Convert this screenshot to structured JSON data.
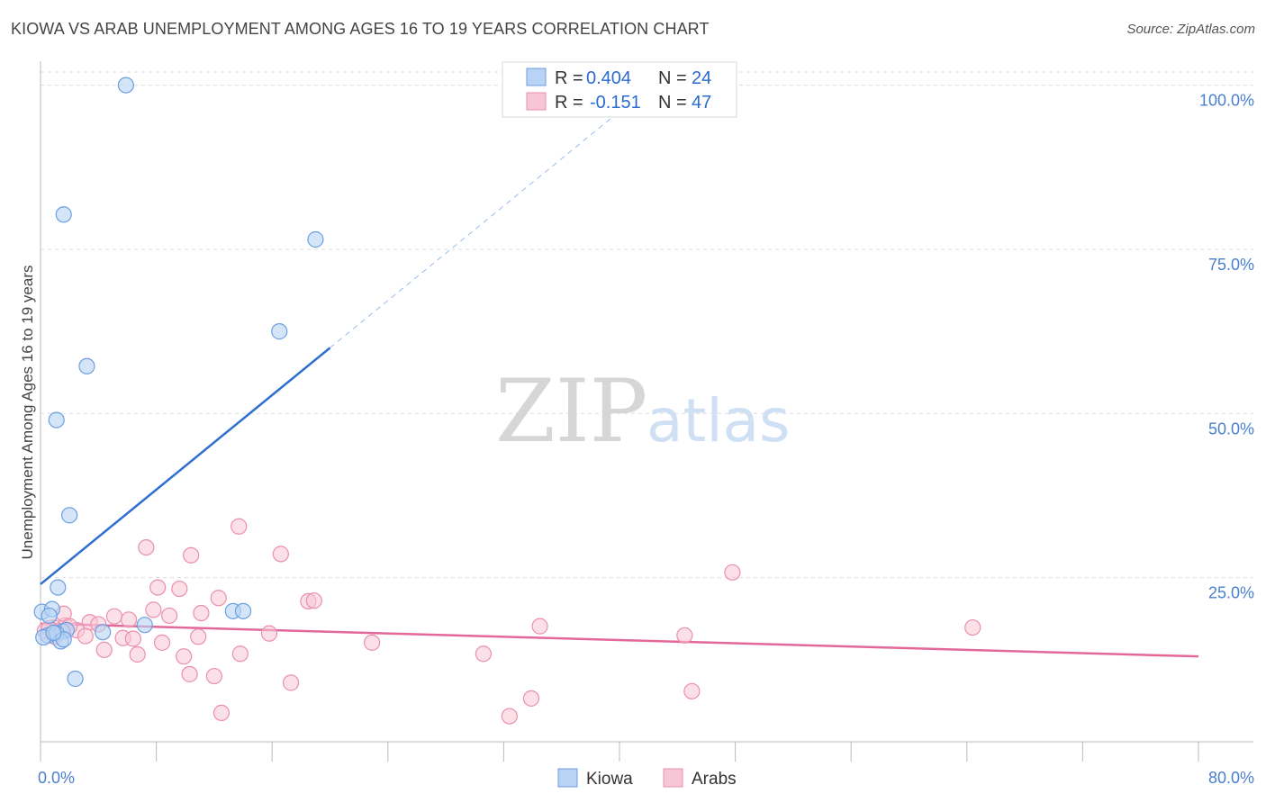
{
  "title": "KIOWA VS ARAB UNEMPLOYMENT AMONG AGES 16 TO 19 YEARS CORRELATION CHART",
  "source": "Source: ZipAtlas.com",
  "watermark": {
    "zip": "ZIP",
    "atlas": "atlas"
  },
  "colors": {
    "kiowa_fill": "#b8d3f4",
    "kiowa_stroke": "#6c9fe0",
    "kiowa_line": "#2f6fd0",
    "arab_fill": "#f7c6d6",
    "arab_stroke": "#ea8fae",
    "arab_line": "#e3689a",
    "grid": "#dddddd",
    "tick_label": "#4a7fd0"
  },
  "legend": {
    "rows": [
      {
        "name": "kiowa",
        "r_label": "R =",
        "r_value": "0.404",
        "n_label": "N =",
        "n_value": "24"
      },
      {
        "name": "arabs",
        "r_label": "R =",
        "r_value": "-0.151",
        "n_label": "N =",
        "n_value": "47"
      }
    ]
  },
  "bottom_legend": [
    "Kiowa",
    "Arabs"
  ],
  "chart_data": {
    "type": "scatter",
    "title": "KIOWA VS ARAB UNEMPLOYMENT AMONG AGES 16 TO 19 YEARS CORRELATION CHART",
    "xlabel": "",
    "ylabel": "Unemployment Among Ages 16 to 19 years",
    "xlim": [
      0,
      80
    ],
    "ylim": [
      0,
      102
    ],
    "x_tick_labels": [
      "0.0%",
      "80.0%"
    ],
    "y_ticks": [
      25,
      50,
      75,
      100
    ],
    "y_tick_labels": [
      "25.0%",
      "50.0%",
      "75.0%",
      "100.0%"
    ],
    "grid": true,
    "series": [
      {
        "name": "Kiowa",
        "points": [
          [
            5.9,
            100.0
          ],
          [
            1.6,
            80.3
          ],
          [
            19.0,
            76.5
          ],
          [
            16.5,
            62.5
          ],
          [
            3.2,
            57.2
          ],
          [
            1.1,
            49.0
          ],
          [
            2.0,
            34.5
          ],
          [
            1.2,
            23.5
          ],
          [
            13.3,
            19.9
          ],
          [
            14.0,
            19.9
          ],
          [
            0.1,
            19.8
          ],
          [
            0.8,
            20.2
          ],
          [
            0.6,
            19.2
          ],
          [
            7.2,
            17.8
          ],
          [
            4.3,
            16.7
          ],
          [
            1.5,
            16.8
          ],
          [
            1.8,
            17.0
          ],
          [
            0.5,
            16.2
          ],
          [
            0.2,
            15.9
          ],
          [
            1.1,
            16.5
          ],
          [
            1.4,
            15.3
          ],
          [
            1.6,
            15.6
          ],
          [
            2.4,
            9.6
          ],
          [
            0.9,
            16.6
          ]
        ],
        "trend": {
          "x0": 0,
          "y0": 24.0,
          "x1": 20,
          "y1": 60.0,
          "dashed_to_x": 41
        }
      },
      {
        "name": "Arabs",
        "points": [
          [
            13.7,
            32.8
          ],
          [
            7.3,
            29.6
          ],
          [
            10.4,
            28.4
          ],
          [
            16.6,
            28.6
          ],
          [
            47.8,
            25.8
          ],
          [
            8.1,
            23.5
          ],
          [
            9.6,
            23.3
          ],
          [
            12.3,
            21.9
          ],
          [
            18.5,
            21.4
          ],
          [
            18.9,
            21.5
          ],
          [
            7.8,
            20.1
          ],
          [
            5.1,
            19.1
          ],
          [
            8.9,
            19.2
          ],
          [
            11.1,
            19.6
          ],
          [
            6.1,
            18.6
          ],
          [
            3.4,
            18.2
          ],
          [
            4.0,
            17.9
          ],
          [
            1.7,
            17.7
          ],
          [
            0.9,
            17.4
          ],
          [
            34.5,
            17.6
          ],
          [
            64.4,
            17.4
          ],
          [
            0.3,
            16.9
          ],
          [
            2.5,
            17.0
          ],
          [
            3.1,
            16.1
          ],
          [
            5.7,
            15.8
          ],
          [
            6.4,
            15.7
          ],
          [
            10.9,
            16.0
          ],
          [
            15.8,
            16.5
          ],
          [
            22.9,
            15.1
          ],
          [
            44.5,
            16.2
          ],
          [
            1.0,
            16.0
          ],
          [
            8.4,
            15.1
          ],
          [
            4.4,
            14.0
          ],
          [
            6.7,
            13.3
          ],
          [
            9.9,
            13.0
          ],
          [
            13.8,
            13.4
          ],
          [
            30.6,
            13.4
          ],
          [
            10.3,
            10.3
          ],
          [
            12.0,
            10.0
          ],
          [
            17.3,
            9.0
          ],
          [
            33.9,
            6.6
          ],
          [
            45.0,
            7.7
          ],
          [
            12.5,
            4.4
          ],
          [
            32.4,
            3.9
          ],
          [
            1.6,
            19.5
          ],
          [
            2.0,
            17.6
          ],
          [
            0.6,
            17.3
          ]
        ],
        "trend": {
          "x0": 0,
          "y0": 18.0,
          "x1": 80,
          "y1": 13.0
        }
      }
    ]
  }
}
